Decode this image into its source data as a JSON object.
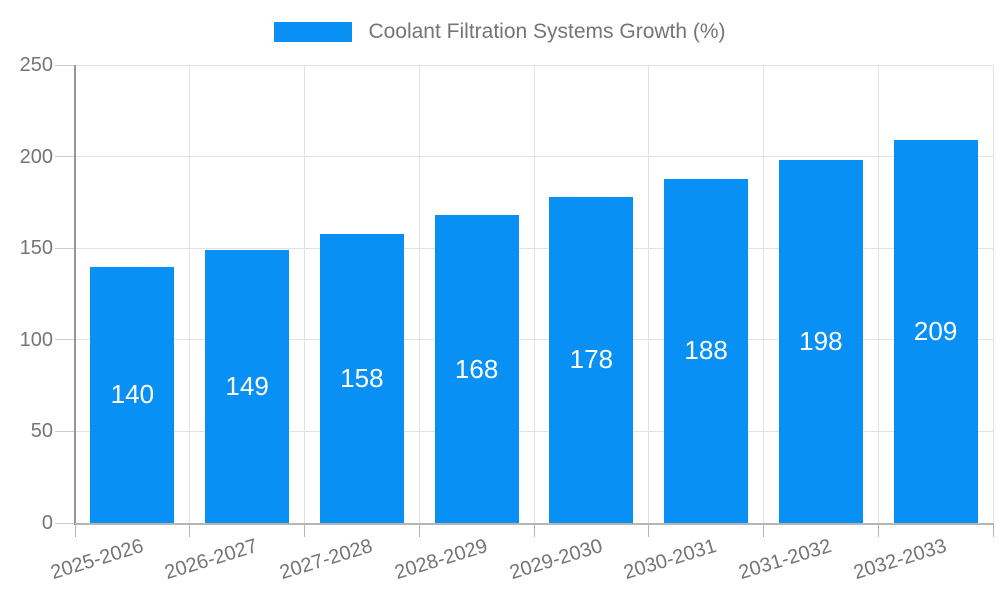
{
  "chart_data": {
    "type": "bar",
    "title": "Coolant Filtration Systems Growth (%)",
    "categories": [
      "2025-2026",
      "2026-2027",
      "2027-2028",
      "2028-2029",
      "2029-2030",
      "2030-2031",
      "2031-2032",
      "2032-2033"
    ],
    "series": [
      {
        "name": "Coolant Filtration Systems Growth (%)",
        "values": [
          140,
          149,
          158,
          168,
          178,
          188,
          198,
          209
        ],
        "color": "#0990f5"
      }
    ],
    "ylim": [
      0,
      250
    ],
    "yticks": [
      0,
      50,
      100,
      150,
      200,
      250
    ],
    "grid": true,
    "legend_position": "top",
    "value_labels": "inside-center",
    "xlabel": "",
    "ylabel": ""
  },
  "colors": {
    "background": "#ffffff",
    "axis_text": "#757575",
    "gridline": "#e2e2e2",
    "y_axis_line": "#979797",
    "x_axis_line": "#b5b5b5",
    "tick": "#cccccc",
    "value_label": "#ffffff"
  }
}
